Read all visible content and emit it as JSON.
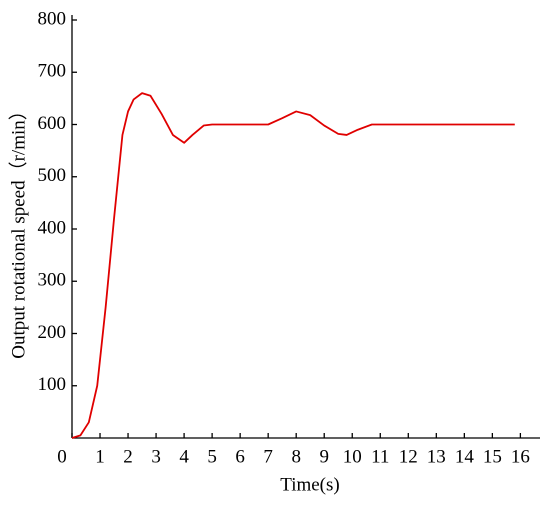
{
  "chart_data": {
    "type": "line",
    "xlabel": "Time(s)",
    "ylabel": "Output rotational speed（r/min）",
    "xlim": [
      0,
      16.7
    ],
    "ylim": [
      0,
      800
    ],
    "xticks": [
      0,
      1,
      2,
      3,
      4,
      5,
      6,
      7,
      8,
      9,
      10,
      11,
      12,
      13,
      14,
      15,
      16
    ],
    "yticks": [
      100,
      200,
      300,
      400,
      500,
      600,
      700,
      800
    ],
    "grid": false,
    "series": [
      {
        "color": "#e00000",
        "x": [
          0,
          0.3,
          0.6,
          0.9,
          1.2,
          1.5,
          1.8,
          2.0,
          2.2,
          2.5,
          2.8,
          3.2,
          3.6,
          4.0,
          4.3,
          4.7,
          5,
          6,
          7,
          7.5,
          8,
          8.5,
          9,
          9.5,
          9.8,
          10.2,
          10.7,
          11,
          12,
          13,
          14,
          15,
          15.8
        ],
        "values": [
          0,
          5,
          30,
          100,
          250,
          420,
          580,
          625,
          648,
          660,
          655,
          620,
          580,
          565,
          580,
          598,
          600,
          600,
          600,
          612,
          625,
          618,
          598,
          582,
          580,
          590,
          600,
          600,
          600,
          600,
          600,
          600,
          600
        ]
      }
    ]
  }
}
